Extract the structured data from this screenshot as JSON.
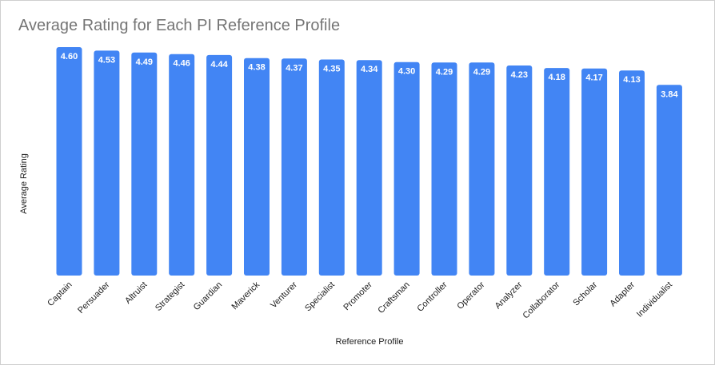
{
  "chart_data": {
    "type": "bar",
    "title": "Average Rating for Each PI Reference Profile",
    "xlabel": "Reference Profile",
    "ylabel": "Average Rating",
    "categories": [
      "Captain",
      "Persuader",
      "Altruist",
      "Strategist",
      "Guardian",
      "Maverick",
      "Venturer",
      "Specialist",
      "Promoter",
      "Craftsman",
      "Controller",
      "Operator",
      "Analyzer",
      "Collaborator",
      "Scholar",
      "Adapter",
      "Individualist"
    ],
    "values": [
      4.6,
      4.53,
      4.49,
      4.46,
      4.44,
      4.38,
      4.37,
      4.35,
      4.34,
      4.3,
      4.29,
      4.29,
      4.23,
      4.18,
      4.17,
      4.13,
      3.84
    ],
    "value_labels": [
      "4.60",
      "4.53",
      "4.49",
      "4.46",
      "4.44",
      "4.38",
      "4.37",
      "4.35",
      "4.34",
      "4.30",
      "4.29",
      "4.29",
      "4.23",
      "4.18",
      "4.17",
      "4.13",
      "3.84"
    ],
    "ylim": [
      0,
      4.6
    ],
    "grid": false,
    "legend": "none",
    "colors": {
      "bar": "#4285f4",
      "title": "#757575",
      "border": "#cfcfcf",
      "bar_label": "#ffffff"
    }
  }
}
